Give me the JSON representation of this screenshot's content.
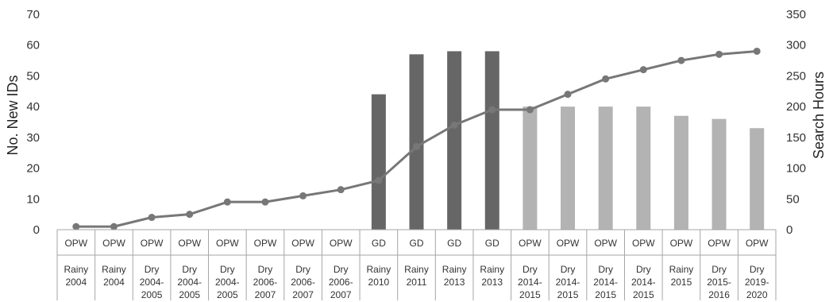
{
  "chart_data": {
    "type": "bar",
    "title": "",
    "ylabel": "No. New IDs",
    "y2label": "Search Hours",
    "ylim": [
      0,
      70
    ],
    "y2lim": [
      0,
      350
    ],
    "yticks": [
      0,
      10,
      20,
      30,
      40,
      50,
      60,
      70
    ],
    "y2ticks": [
      0,
      50,
      100,
      150,
      200,
      250,
      300,
      350
    ],
    "categories": [
      {
        "group": "OPW",
        "lines": [
          "Rainy",
          "2004"
        ]
      },
      {
        "group": "OPW",
        "lines": [
          "Rainy",
          "2004"
        ]
      },
      {
        "group": "OPW",
        "lines": [
          "Dry",
          "2004-",
          "2005"
        ]
      },
      {
        "group": "OPW",
        "lines": [
          "Dry",
          "2004-",
          "2005"
        ]
      },
      {
        "group": "OPW",
        "lines": [
          "Dry",
          "2004-",
          "2005"
        ]
      },
      {
        "group": "OPW",
        "lines": [
          "Dry",
          "2006-",
          "2007"
        ]
      },
      {
        "group": "OPW",
        "lines": [
          "Dry",
          "2006-",
          "2007"
        ]
      },
      {
        "group": "OPW",
        "lines": [
          "Dry",
          "2006-",
          "2007"
        ]
      },
      {
        "group": "GD",
        "lines": [
          "Rainy",
          "2010"
        ]
      },
      {
        "group": "GD",
        "lines": [
          "Rainy",
          "2011"
        ]
      },
      {
        "group": "GD",
        "lines": [
          "Rainy",
          "2013"
        ]
      },
      {
        "group": "GD",
        "lines": [
          "Rainy",
          "2013"
        ]
      },
      {
        "group": "OPW",
        "lines": [
          "Dry",
          "2014-",
          "2015"
        ]
      },
      {
        "group": "OPW",
        "lines": [
          "Dry",
          "2014-",
          "2015"
        ]
      },
      {
        "group": "OPW",
        "lines": [
          "Dry",
          "2014-",
          "2015"
        ]
      },
      {
        "group": "OPW",
        "lines": [
          "Dry",
          "2014-",
          "2015"
        ]
      },
      {
        "group": "OPW",
        "lines": [
          "Rainy",
          "2015"
        ]
      },
      {
        "group": "OPW",
        "lines": [
          "Dry",
          "2015-",
          "2016"
        ]
      },
      {
        "group": "OPW",
        "lines": [
          "Dry",
          "2019-",
          "2020"
        ]
      }
    ],
    "bars": {
      "axis": "left",
      "values": [
        0,
        0,
        0,
        0,
        0,
        0,
        0,
        0,
        44,
        57,
        58,
        58,
        40,
        40,
        40,
        40,
        37,
        36,
        33
      ],
      "colors": {
        "GD": "#666666",
        "OPW": "#b3b3b3"
      }
    },
    "line": {
      "axis": "right",
      "values": [
        5,
        5,
        20,
        25,
        45,
        45,
        55,
        65,
        80,
        135,
        170,
        195,
        195,
        220,
        245,
        260,
        275,
        285,
        290
      ],
      "color": "#777777"
    },
    "grid": false,
    "legend": "none"
  }
}
